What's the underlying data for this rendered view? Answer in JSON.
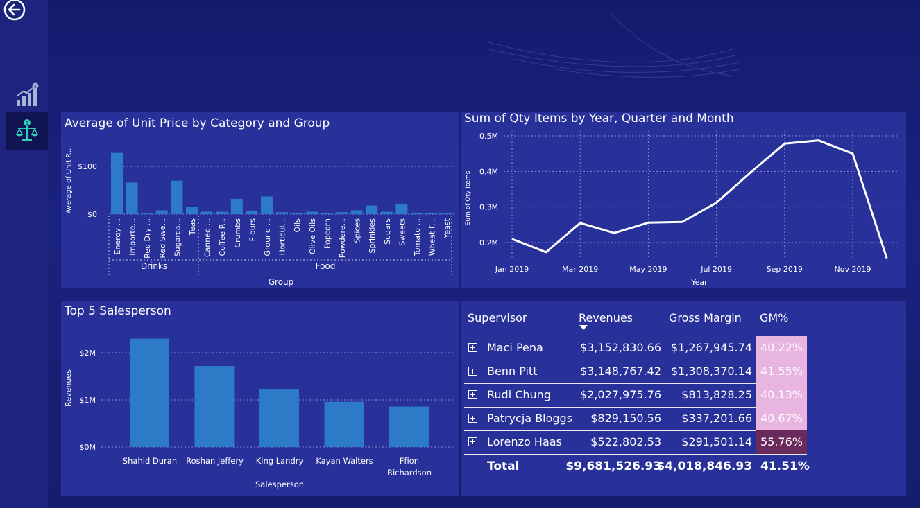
{
  "colors": {
    "bar": "#2d7ac7",
    "panel": "#28309a",
    "gm_light": "#e8b4e0",
    "gm_dark": "#6b2a5c"
  },
  "nav": {
    "back_icon": "back-arrow-icon",
    "items": [
      {
        "icon": "growth-chart-icon"
      },
      {
        "icon": "balance-scale-icon"
      }
    ]
  },
  "unit_price": {
    "title": "Average of Unit Price by Category and Group",
    "chart_data": {
      "type": "bar",
      "title": "Average of Unit Price by Category and Group",
      "xlabel": "Group",
      "ylabel": "Average of Unit P...",
      "ylim": [
        0,
        140
      ],
      "yticks": [
        {
          "v": 0,
          "label": "$0"
        },
        {
          "v": 100,
          "label": "$100"
        }
      ],
      "groups": [
        {
          "name": "Drinks",
          "categories": [
            "Energy ...",
            "Importe...",
            "Red Dry ...",
            "Red Swe...",
            "Sugarca...",
            "Teas"
          ],
          "values": [
            128,
            66,
            2,
            8,
            70,
            15
          ]
        },
        {
          "name": "Food",
          "categories": [
            "Canned ...",
            "Coffee P...",
            "Crumbs",
            "Flours",
            "Ground ...",
            "Horticul...",
            "Oils",
            "Olive Oils",
            "Popcorn",
            "Powdere...",
            "Spices",
            "Sprinkles",
            "Sugars",
            "Sweets",
            "Tomato ...",
            "Wheat F...",
            "Yeast"
          ],
          "values": [
            5,
            5,
            32,
            6,
            37,
            4,
            2,
            5,
            2,
            4,
            8,
            18,
            5,
            21,
            3,
            3,
            2
          ]
        }
      ]
    }
  },
  "qty": {
    "title": "Sum of Qty Items by Year, Quarter and Month",
    "chart_data": {
      "type": "line",
      "title": "Sum of Qty Items by Year, Quarter and Month",
      "xlabel": "Year",
      "ylabel": "Sum of Qty Items",
      "ylim": [
        0.1,
        0.5
      ],
      "yticks": [
        {
          "v": 0.2,
          "label": "0.2M"
        },
        {
          "v": 0.3,
          "label": "0.3M"
        },
        {
          "v": 0.4,
          "label": "0.4M"
        },
        {
          "v": 0.5,
          "label": "0.5M"
        }
      ],
      "xticks": [
        {
          "i": 0,
          "label": "Jan 2019"
        },
        {
          "i": 2,
          "label": "Mar 2019"
        },
        {
          "i": 4,
          "label": "May 2019"
        },
        {
          "i": 6,
          "label": "Jul 2019"
        },
        {
          "i": 8,
          "label": "Sep 2019"
        },
        {
          "i": 10,
          "label": "Nov 2019"
        }
      ],
      "x": [
        "Jan 2019",
        "Feb 2019",
        "Mar 2019",
        "Apr 2019",
        "May 2019",
        "Jun 2019",
        "Jul 2019",
        "Aug 2019",
        "Sep 2019",
        "Oct 2019",
        "Nov 2019",
        "Dec 2019"
      ],
      "values": [
        0.21,
        0.173,
        0.255,
        0.227,
        0.256,
        0.258,
        0.312,
        0.397,
        0.478,
        0.487,
        0.45,
        0.156
      ]
    }
  },
  "top5": {
    "title": "Top 5 Salesperson",
    "chart_data": {
      "type": "bar",
      "title": "Top 5 Salesperson",
      "xlabel": "Salesperson",
      "ylabel": "Revenues",
      "ylim": [
        0,
        2.5
      ],
      "yticks": [
        {
          "v": 0,
          "label": "$0M"
        },
        {
          "v": 1,
          "label": "$1M"
        },
        {
          "v": 2,
          "label": "$2M"
        }
      ],
      "categories": [
        [
          "Shahid Duran"
        ],
        [
          "Roshan Jeffery"
        ],
        [
          "King Landry"
        ],
        [
          "Kayan Walters"
        ],
        [
          "Ffion",
          "Richardson"
        ]
      ],
      "values": [
        2.3,
        1.72,
        1.22,
        0.96,
        0.86
      ]
    }
  },
  "table": {
    "headers": {
      "supervisor": "Supervisor",
      "revenues": "Revenues",
      "gross_margin": "Gross Margin",
      "gm_pct": "GM%"
    },
    "rows": [
      {
        "name": "Maci Pena",
        "revenues": "$3,152,830.66",
        "gm": "$1,267,945.74",
        "pct": "40.22%",
        "shade": "light"
      },
      {
        "name": "Benn Pitt",
        "revenues": "$3,148,767.42",
        "gm": "$1,308,370.14",
        "pct": "41.55%",
        "shade": "light"
      },
      {
        "name": "Rudi Chung",
        "revenues": "$2,027,975.76",
        "gm": "$813,828.25",
        "pct": "40.13%",
        "shade": "light"
      },
      {
        "name": "Patrycja Bloggs",
        "revenues": "$829,150.56",
        "gm": "$337,201.66",
        "pct": "40.67%",
        "shade": "light"
      },
      {
        "name": "Lorenzo Haas",
        "revenues": "$522,802.53",
        "gm": "$291,501.14",
        "pct": "55.76%",
        "shade": "dark"
      }
    ],
    "total": {
      "label": "Total",
      "revenues": "$9,681,526.93",
      "gm": "$4,018,846.93",
      "pct": "41.51%"
    }
  }
}
